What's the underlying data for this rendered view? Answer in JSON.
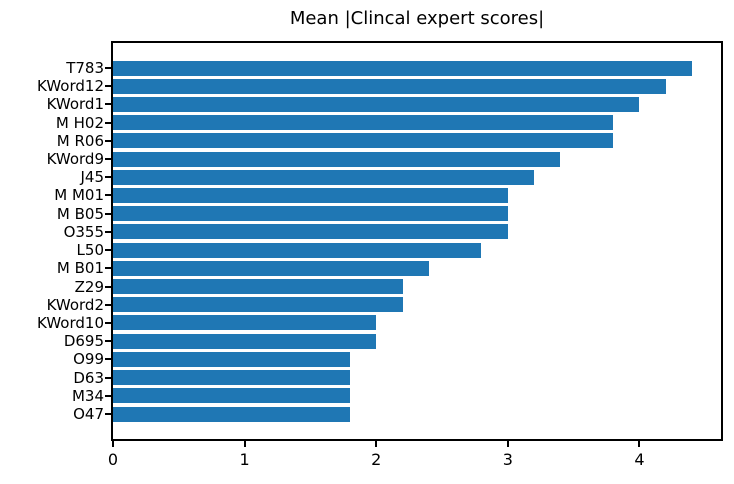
{
  "chart_data": {
    "type": "bar",
    "orientation": "horizontal",
    "title": "Mean |Clincal expert scores|",
    "categories": [
      "T783",
      "KWord12",
      "KWord1",
      "M H02",
      "M R06",
      "KWord9",
      "J45",
      "M M01",
      "M B05",
      "O355",
      "L50",
      "M B01",
      "Z29",
      "KWord2",
      "KWord10",
      "D695",
      "O99",
      "D63",
      "M34",
      "O47"
    ],
    "values": [
      4.4,
      4.2,
      4.0,
      3.8,
      3.8,
      3.4,
      3.2,
      3.0,
      3.0,
      3.0,
      2.8,
      2.4,
      2.2,
      2.2,
      2.0,
      2.0,
      1.8,
      1.8,
      1.8,
      1.8
    ],
    "xlabel": "",
    "ylabel": "",
    "xlim": [
      0,
      4.62
    ],
    "xticks": [
      0,
      1,
      2,
      3,
      4
    ],
    "grid": false,
    "legend": false,
    "sort_order": "descending",
    "bar_color": "#1f77b4",
    "axis_color": "#000000",
    "text_color": "#000000",
    "background_color": "#ffffff"
  }
}
